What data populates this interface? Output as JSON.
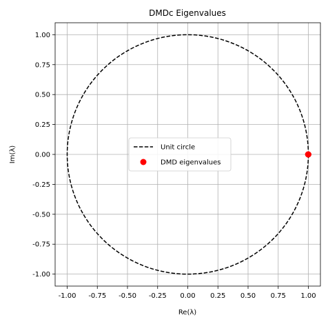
{
  "chart_data": {
    "type": "scatter",
    "title": "DMDc Eigenvalues",
    "xlabel": "Re(λ)",
    "ylabel": "Im(λ)",
    "xlim": [
      -1.1,
      1.1
    ],
    "ylim": [
      -1.1,
      1.1
    ],
    "xticks": [
      "-1.00",
      "-0.75",
      "-0.50",
      "-0.25",
      "0.00",
      "0.25",
      "0.50",
      "0.75",
      "1.00"
    ],
    "yticks": [
      "1.00",
      "0.75",
      "0.50",
      "0.25",
      "0.00",
      "-0.25",
      "-0.50",
      "-0.75",
      "-1.00"
    ],
    "grid": true,
    "legend_position": "center",
    "series": [
      {
        "name": "Unit circle",
        "kind": "line",
        "style": "dashed",
        "color": "#000000",
        "shape": "circle",
        "center": [
          0,
          0
        ],
        "radius": 1
      },
      {
        "name": "DMD eigenvalues",
        "kind": "scatter",
        "color": "#ff0000",
        "points": [
          {
            "x": 1.0,
            "y": 0.0
          },
          {
            "x": 0.998,
            "y": 0.0
          }
        ]
      }
    ]
  }
}
